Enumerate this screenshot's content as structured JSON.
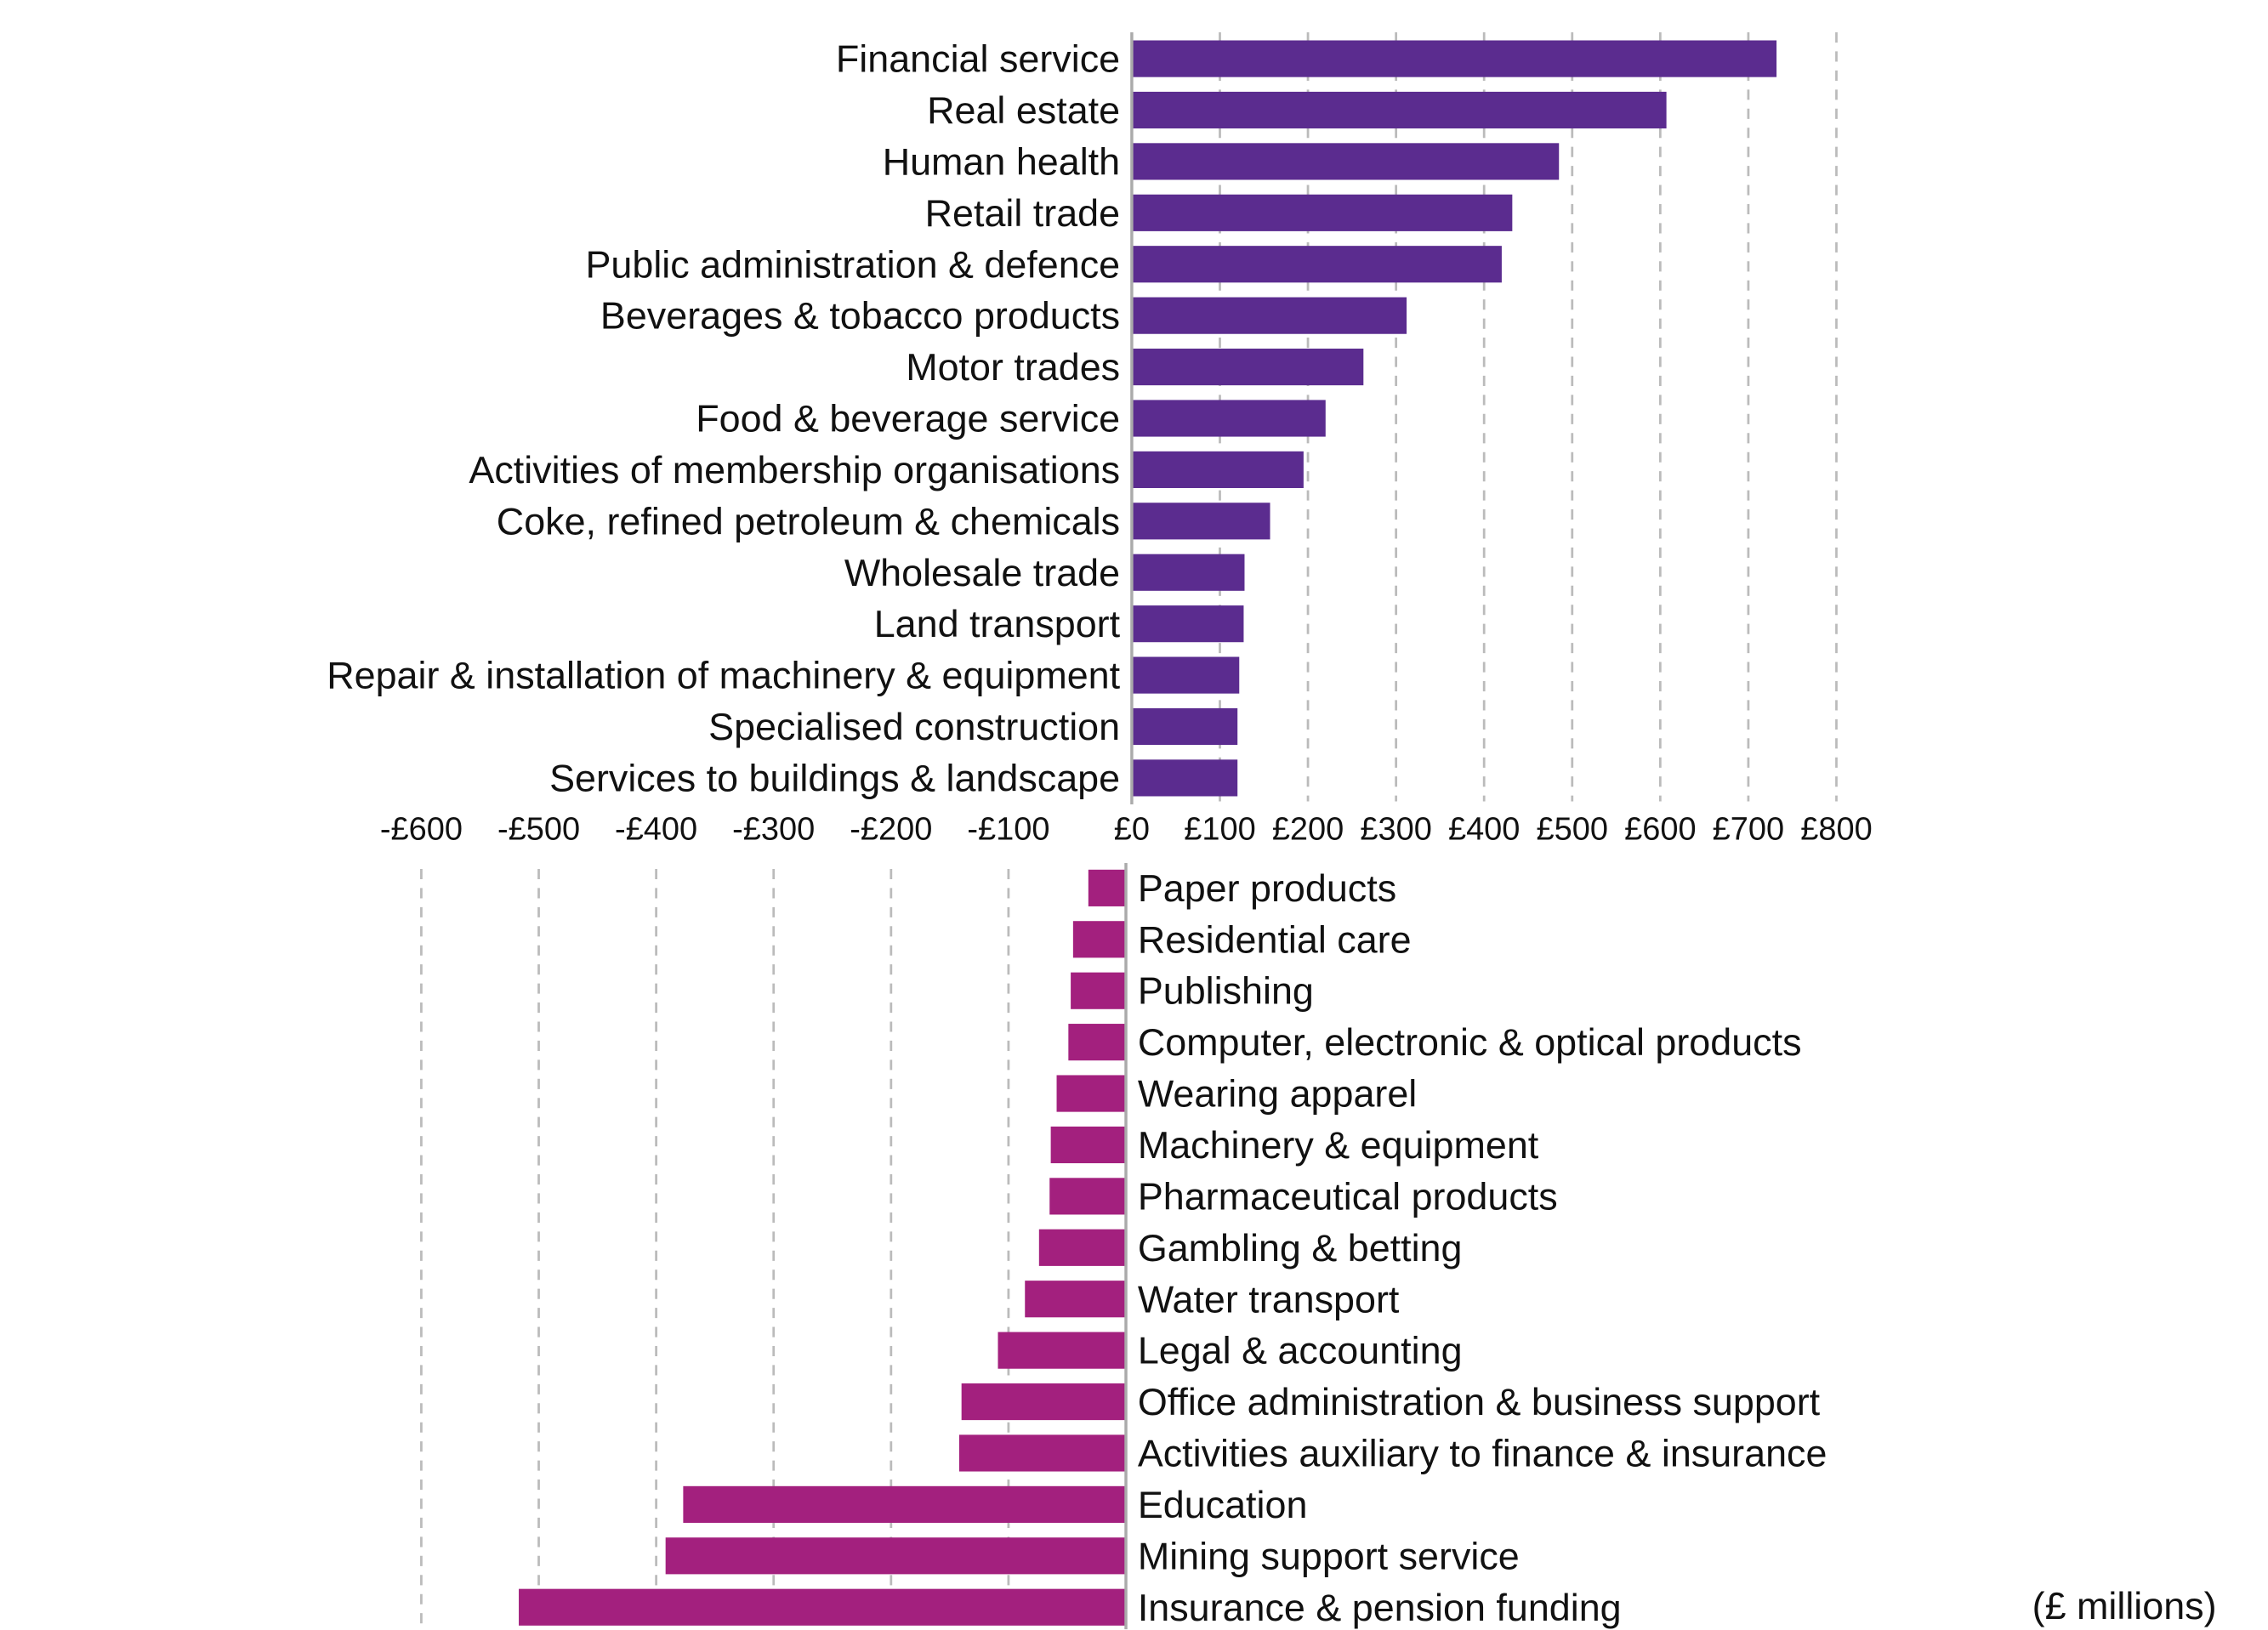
{
  "chart_data": [
    {
      "type": "bar",
      "orientation": "horizontal",
      "title": "",
      "xlabel": "",
      "categories": [
        "Financial service",
        "Real estate",
        "Human health",
        "Retail trade",
        "Public administration & defence",
        "Beverages & tobacco products",
        "Motor trades",
        "Food & beverage service",
        "Activities of membership organisations",
        "Coke, refined petroleum & chemicals",
        "Wholesale trade",
        "Land transport",
        "Repair & installation of machinery & equipment",
        "Specialised construction",
        "Services to buildings & landscape"
      ],
      "values": [
        732,
        607,
        485,
        432,
        420,
        312,
        263,
        220,
        195,
        157,
        128,
        127,
        122,
        120,
        120
      ],
      "xlim": [
        0,
        800
      ],
      "ticks": [
        0,
        100,
        200,
        300,
        400,
        500,
        600,
        700,
        800
      ],
      "tick_labels": [
        "£0",
        "£100",
        "£200",
        "£300",
        "£400",
        "£500",
        "£600",
        "£700",
        "£800"
      ],
      "color": "#5b2c8f",
      "grid": true
    },
    {
      "type": "bar",
      "orientation": "horizontal",
      "title": "",
      "xlabel": "(£ millions)",
      "categories": [
        "Paper products",
        "Residential care",
        "Publishing",
        "Computer, electronic & optical products",
        "Wearing apparel",
        "Machinery & equipment",
        "Pharmaceutical products",
        "Gambling & betting",
        "Water transport",
        "Legal & accounting",
        "Office administration & business support",
        "Activities auxiliary to finance & insurance",
        "Education",
        "Mining support service",
        "Insurance & pension funding"
      ],
      "values": [
        -32,
        -45,
        -47,
        -49,
        -59,
        -64,
        -65,
        -74,
        -86,
        -109,
        -140,
        -142,
        -377,
        -392,
        -517
      ],
      "xlim": [
        -600,
        0
      ],
      "ticks": [
        -600,
        -500,
        -400,
        -300,
        -200,
        -100
      ],
      "tick_labels": [
        "-£600",
        "-£500",
        "-£400",
        "-£300",
        "-£200",
        "-£100"
      ],
      "color": "#a3207e",
      "grid": true
    }
  ]
}
